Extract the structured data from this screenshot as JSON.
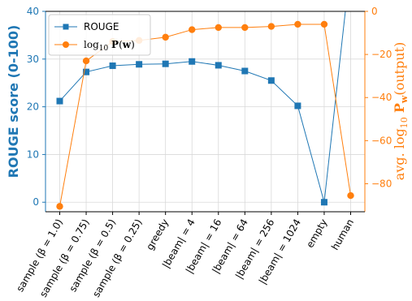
{
  "chart_data": {
    "type": "line",
    "categories": [
      "sample (β = 1.0)",
      "sample (β = 0.75)",
      "sample (β = 0.5)",
      "sample (β = 0.25)",
      "greedy",
      "|beam| = 4",
      "|beam| = 16",
      "|beam| = 64",
      "|beam| = 256",
      "|beam| = 1024",
      "empty",
      "human"
    ],
    "series": [
      {
        "name": "ROUGE",
        "axis": "left",
        "color": "#1f77b4",
        "marker": "square",
        "values": [
          21.2,
          27.3,
          28.6,
          28.9,
          29.0,
          29.5,
          28.7,
          27.5,
          25.5,
          20.2,
          0.0,
          50
        ]
      },
      {
        "name": "log10 P(w)",
        "axis": "right",
        "color": "#ff7f0e",
        "marker": "circle",
        "values": [
          -90.5,
          -23,
          -14,
          -13.5,
          -12,
          -8.5,
          -7.5,
          -7.5,
          -7,
          -6,
          -6,
          -85.5
        ]
      }
    ],
    "y_left": {
      "label": "ROUGE score (0-100)",
      "ylim": [
        -2,
        40
      ],
      "ticks": [
        0,
        10,
        20,
        30,
        40
      ]
    },
    "y_right": {
      "label": "avg. log10 Pw(output)",
      "ylim": [
        -93,
        0
      ],
      "ticks": [
        0,
        -20,
        -40,
        -60,
        -80
      ]
    },
    "grid": true,
    "legend": "top-left"
  }
}
